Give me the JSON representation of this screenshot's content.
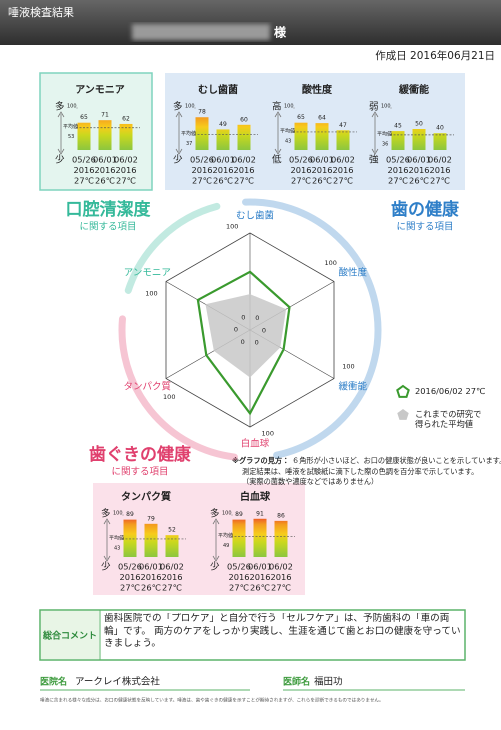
{
  "header": {
    "title": "唾液検査結果",
    "honorific": "様"
  },
  "created": "作成日 2016年06月21日",
  "sections": {
    "oral": {
      "title": "口腔清潔度",
      "sub": "に関する項目",
      "color": "#35b99a"
    },
    "teeth": {
      "title": "歯の健康",
      "sub": "に関する項目",
      "color": "#2f7fc8"
    },
    "gums": {
      "title": "歯ぐきの健康",
      "sub": "に関する項目",
      "color": "#e0406e"
    }
  },
  "chart_data": [
    {
      "type": "bar",
      "title": "アンモニア",
      "section": "oral",
      "high_label": "多",
      "low_label": "少",
      "categories": [
        [
          "05/26",
          "2016",
          "27℃"
        ],
        [
          "06/01",
          "2016",
          "26℃"
        ],
        [
          "06/02",
          "2016",
          "27℃"
        ]
      ],
      "values": [
        65,
        71,
        62
      ],
      "average": {
        "label": "平均値",
        "value": 53
      },
      "ylim": [
        0,
        100
      ],
      "yticks": [
        100
      ]
    },
    {
      "type": "bar",
      "title": "むし歯菌",
      "section": "teeth",
      "high_label": "多",
      "low_label": "少",
      "categories": [
        [
          "05/26",
          "2016",
          "27℃"
        ],
        [
          "06/01",
          "2016",
          "26℃"
        ],
        [
          "06/02",
          "2016",
          "27℃"
        ]
      ],
      "values": [
        78,
        49,
        60
      ],
      "average": {
        "label": "平均値",
        "value": 37
      },
      "ylim": [
        0,
        100
      ],
      "yticks": [
        100
      ]
    },
    {
      "type": "bar",
      "title": "酸性度",
      "section": "teeth",
      "high_label": "高",
      "low_label": "低",
      "categories": [
        [
          "05/26",
          "2016",
          "27℃"
        ],
        [
          "06/01",
          "2016",
          "26℃"
        ],
        [
          "06/02",
          "2016",
          "27℃"
        ]
      ],
      "values": [
        65,
        64,
        47
      ],
      "average": {
        "label": "平均値",
        "value": 43
      },
      "ylim": [
        0,
        100
      ],
      "yticks": [
        100
      ]
    },
    {
      "type": "bar",
      "title": "緩衝能",
      "section": "teeth",
      "high_label": "弱",
      "low_label": "強",
      "categories": [
        [
          "05/26",
          "2016",
          "27℃"
        ],
        [
          "06/01",
          "2016",
          "26℃"
        ],
        [
          "06/02",
          "2016",
          "27℃"
        ]
      ],
      "values": [
        45,
        50,
        40
      ],
      "average": {
        "label": "平均値",
        "value": 36
      },
      "ylim": [
        0,
        100
      ],
      "yticks": [
        100
      ]
    },
    {
      "type": "bar",
      "title": "タンパク質",
      "section": "gums",
      "high_label": "多",
      "low_label": "少",
      "categories": [
        [
          "05/26",
          "2016",
          "27℃"
        ],
        [
          "06/01",
          "2016",
          "26℃"
        ],
        [
          "06/02",
          "2016",
          "27℃"
        ]
      ],
      "values": [
        89,
        79,
        52
      ],
      "average": {
        "label": "平均値",
        "value": 43
      },
      "ylim": [
        0,
        100
      ],
      "yticks": [
        100
      ]
    },
    {
      "type": "bar",
      "title": "白血球",
      "section": "gums",
      "high_label": "多",
      "low_label": "少",
      "categories": [
        [
          "05/26",
          "2016",
          "27℃"
        ],
        [
          "06/01",
          "2016",
          "26℃"
        ],
        [
          "06/02",
          "2016",
          "27℃"
        ]
      ],
      "values": [
        89,
        91,
        86
      ],
      "average": {
        "label": "平均値",
        "value": 49
      },
      "ylim": [
        0,
        100
      ],
      "yticks": [
        100
      ]
    },
    {
      "type": "radar",
      "categories": [
        "むし歯菌",
        "酸性度",
        "緩衝能",
        "白血球",
        "タンパク質",
        "アンモニア"
      ],
      "category_sections": [
        "teeth",
        "teeth",
        "teeth",
        "gums",
        "gums",
        "oral"
      ],
      "rlim": [
        0,
        100
      ],
      "rticks": [
        0,
        100
      ],
      "series": [
        {
          "name": "2016/06/02 27℃",
          "color": "#3a9a2e",
          "values": [
            60,
            47,
            40,
            86,
            52,
            62
          ]
        },
        {
          "name": "これまでの研究で得られた平均値",
          "color": "#c8c8c8",
          "values": [
            37,
            43,
            36,
            49,
            43,
            53
          ]
        }
      ]
    }
  ],
  "notes": {
    "lead": "※グラフの見方：",
    "lines": [
      "６角形が小さいほど、お口の健康状態が良いことを示しています。",
      "測定結果は、唾液を試験紙に滴下した際の色調を百分率で示しています。",
      "（実際の菌数や濃度などではありません）"
    ]
  },
  "comment": {
    "label": "総合コメント",
    "text": "歯科医院での「プロケア」と自分で行う「セルフケア」は、予防歯科の「車の両輪」です。 両方のケアをしっかり実践し、生涯を通じて歯とお口の健康を守っていきましょう。"
  },
  "footer": {
    "clinic_label": "医院名",
    "clinic": "アークレイ株式会社",
    "doctor_label": "医師名",
    "doctor": "福田功",
    "disclaimer": "唾液に含まれる様々な成分は、お口の健康状態を反映しています。唾液は、歯や歯ぐきの健康を示すことが期待されますが、これらを診断できるものではありません。"
  }
}
